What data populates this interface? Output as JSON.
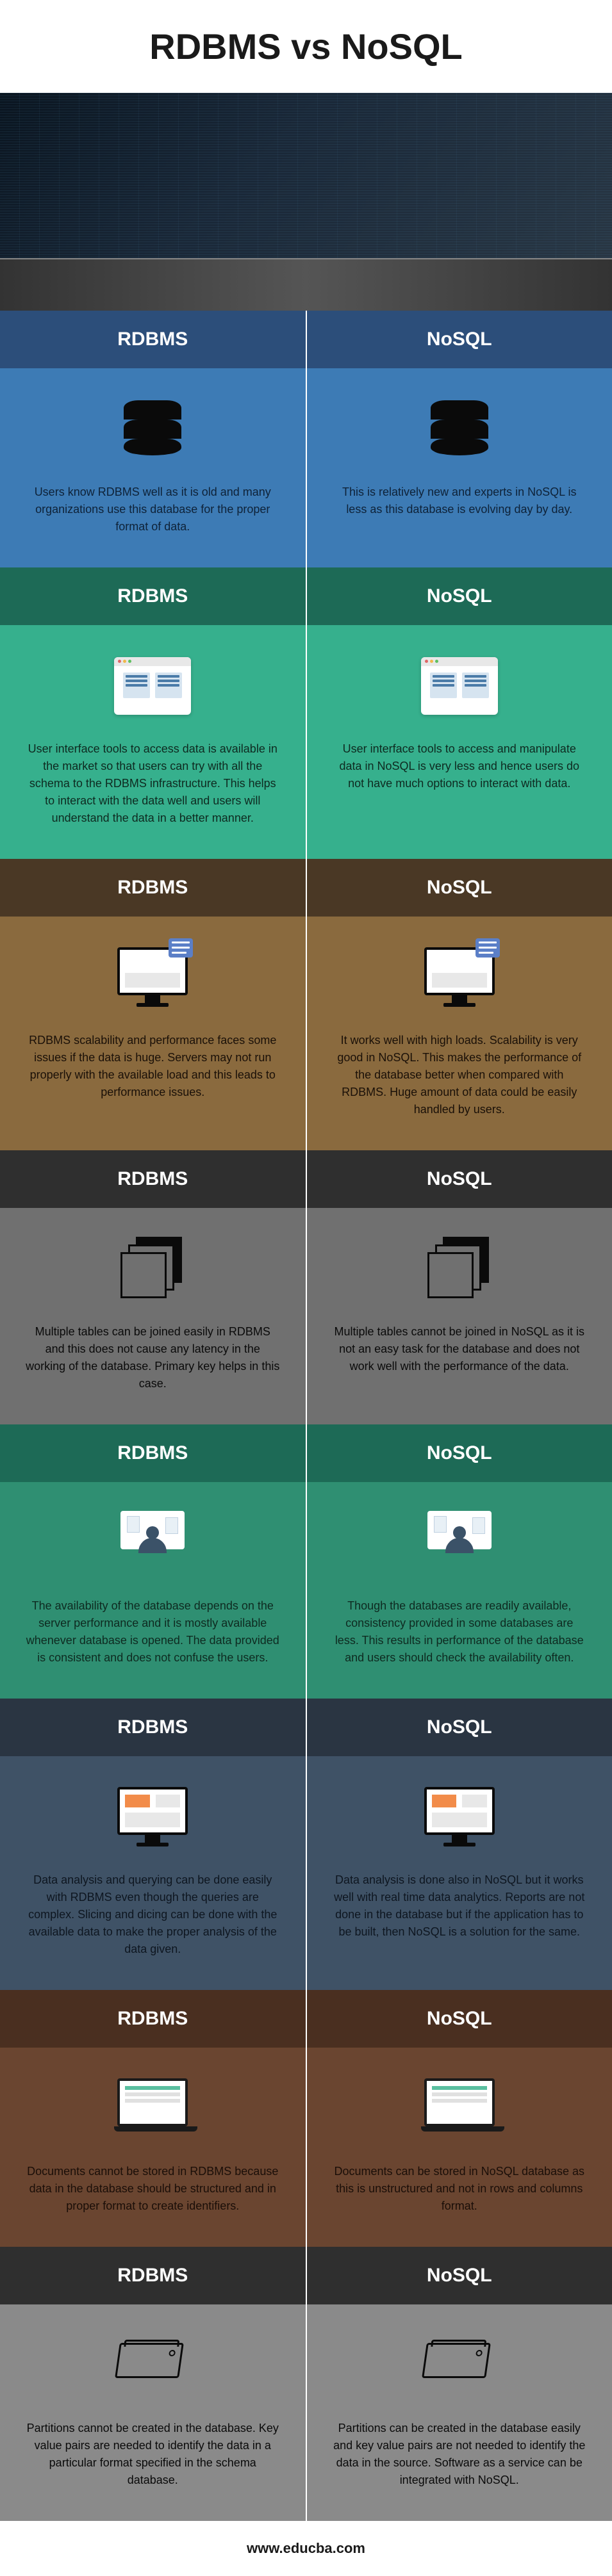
{
  "title": "RDBMS vs NoSQL",
  "footer": "www.educba.com",
  "hero": {
    "bg": "#0a1520"
  },
  "labels": {
    "left": "RDBMS",
    "right": "NoSQL"
  },
  "sections": [
    {
      "header_bg": "#2c4e7a",
      "body_bg": "#3d7bb5",
      "text_color": "#0e2238",
      "icon": "database",
      "left": "Users know RDBMS well as it is old and many organizations use this database for the proper format of data.",
      "right": "This is relatively new and experts in NoSQL is less as this database is evolving day by day."
    },
    {
      "header_bg": "#1d6a56",
      "body_bg": "#36b08d",
      "text_color": "#0e2a20",
      "icon": "ui-card",
      "dot_colors": [
        "#e06666",
        "#f0b84a",
        "#60c060"
      ],
      "left": "User interface tools to access data is available in the market so that users can try with all the schema to the RDBMS infrastructure. This helps to interact with the data well and users will understand the data in a better manner.",
      "right": "User interface tools to access and manipulate data in NoSQL is very less and hence users do not have much options to interact with data."
    },
    {
      "header_bg": "#4a3825",
      "body_bg": "#8a6a3e",
      "text_color": "#1a1008",
      "icon": "monitor-speech",
      "left": "RDBMS scalability and performance faces some issues if the data is huge. Servers may not run properly with the available load and this leads to performance issues.",
      "right": "It works well with high loads. Scalability is very good in NoSQL. This makes the performance of the database better when compared with RDBMS. Huge amount of data could be easily handled by users."
    },
    {
      "header_bg": "#2f2f2f",
      "body_bg": "#707070",
      "text_color": "#0a0a0a",
      "icon": "stack",
      "left": "Multiple tables can be joined easily in RDBMS and this does not cause any latency in the working of the database. Primary key helps in this case.",
      "right": "Multiple tables cannot be joined in NoSQL as it is not an easy task for the database and does not work well with the performance of the data."
    },
    {
      "header_bg": "#1d6a56",
      "body_bg": "#2f8f72",
      "text_color": "#0e2a20",
      "icon": "desk",
      "left": "The availability of the database depends on the server performance and it is mostly available whenever database is opened. The data provided is consistent and does not confuse the users.",
      "right": "Though the databases are readily available, consistency provided in some databases are less. This results in performance of the database and users should check the availability often."
    },
    {
      "header_bg": "#2a3542",
      "body_bg": "#3f5266",
      "text_color": "#0e1620",
      "icon": "monitor-panels",
      "left": "Data analysis and querying can be done easily with RDBMS even though the queries are complex. Slicing and dicing can be done with the available data to make the proper analysis of the data given.",
      "right": "Data analysis is done also in NoSQL but it works well with real time data analytics. Reports are not done in the database but if the application has to be built, then NoSQL is a solution for the same."
    },
    {
      "header_bg": "#4a2f20",
      "body_bg": "#6a4530",
      "text_color": "#1a0e08",
      "icon": "laptop",
      "left": "Documents cannot be stored in RDBMS because data in the database should be structured and in proper format to create identifiers.",
      "right": "Documents can be stored in NoSQL database as this is unstructured and not in rows and columns format."
    },
    {
      "header_bg": "#2f2f2f",
      "body_bg": "#8a8a8a",
      "text_color": "#0a0a0a",
      "icon": "hdd",
      "left": "Partitions cannot be created in the database. Key value pairs are needed to identify the data in a particular format specified in the schema database.",
      "right": "Partitions can be created in the database easily and key value pairs are not needed to identify the data in the source. Software as a service can be integrated with NoSQL."
    }
  ]
}
